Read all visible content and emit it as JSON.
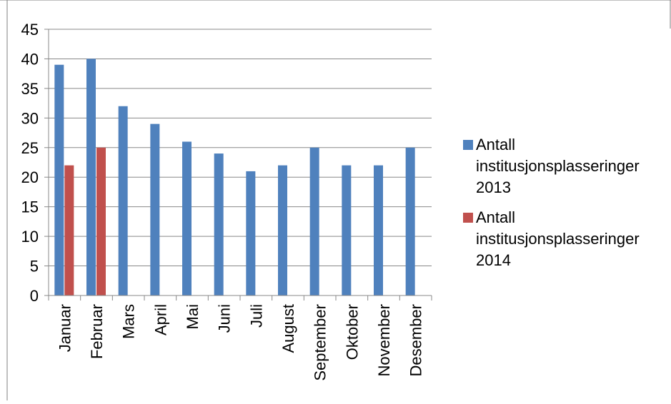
{
  "chart_data": {
    "type": "bar",
    "categories": [
      "Januar",
      "Februar",
      "Mars",
      "April",
      "Mai",
      "Juni",
      "Juli",
      "August",
      "September",
      "Oktober",
      "November",
      "Desember"
    ],
    "series": [
      {
        "name": "Antall institusjonsplasseringer 2013",
        "color": "#4f81bd",
        "values": [
          39,
          40,
          32,
          29,
          26,
          24,
          21,
          22,
          25,
          22,
          22,
          25
        ]
      },
      {
        "name": "Antall institusjonsplasseringer 2014",
        "color": "#c0504d",
        "values": [
          22,
          25,
          null,
          null,
          null,
          null,
          null,
          null,
          null,
          null,
          null,
          null
        ]
      }
    ],
    "ylim": [
      0,
      45
    ],
    "yticks": [
      "0",
      "5",
      "10",
      "15",
      "20",
      "25",
      "30",
      "35",
      "40",
      "45"
    ],
    "grid": true,
    "legend_position": "right"
  },
  "legend": {
    "items": [
      {
        "line1": "Antall",
        "line2": "institusjonsplasseringer",
        "line3": "2013",
        "color": "#4f81bd"
      },
      {
        "line1": "Antall",
        "line2": "institusjonsplasseringer",
        "line3": "2014",
        "color": "#c0504d"
      }
    ]
  }
}
